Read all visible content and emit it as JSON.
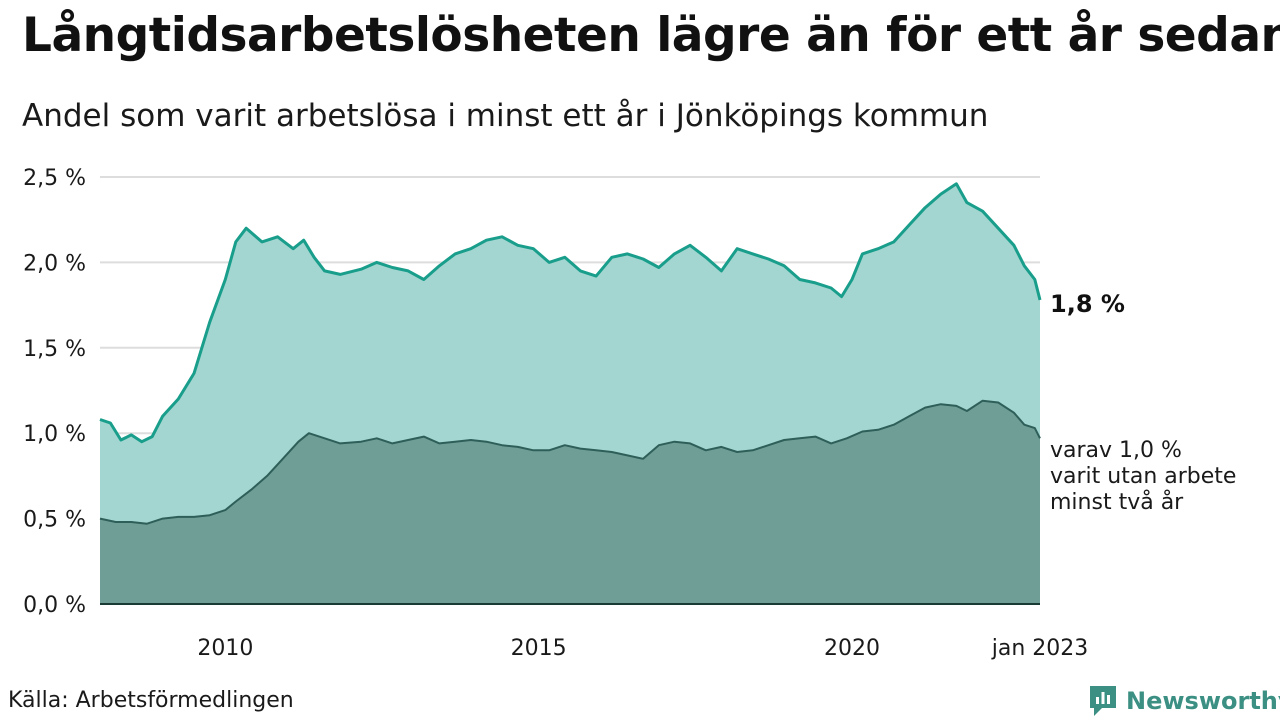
{
  "title": "Långtidsarbetslösheten lägre än för ett år sedan",
  "subtitle": "Andel som varit arbetslösa i minst ett år i Jönköpings kommun",
  "source": "Källa: Arbetsförmedlingen",
  "brand": "Newsworthy",
  "colors": {
    "upper_fill": "#a3d6d0",
    "upper_line": "#1a9e8c",
    "lower_fill": "#6f9e97",
    "lower_line": "#2f5f59",
    "grid": "#dddddd",
    "brand": "#3b8f83"
  },
  "chart_data": {
    "type": "area",
    "x_range": [
      "2008-01",
      "2023-01"
    ],
    "ylim": [
      0,
      2.5
    ],
    "y_ticks": [
      {
        "value": 0,
        "label": "0,0 %"
      },
      {
        "value": 0.5,
        "label": "0,5 %"
      },
      {
        "value": 1.0,
        "label": "1,0 %"
      },
      {
        "value": 1.5,
        "label": "1,5 %"
      },
      {
        "value": 2.0,
        "label": "2,0 %"
      },
      {
        "value": 2.5,
        "label": "2,5 %"
      }
    ],
    "x_ticks": [
      {
        "value": "2010-01",
        "label": "2010"
      },
      {
        "value": "2015-01",
        "label": "2015"
      },
      {
        "value": "2020-01",
        "label": "2020"
      },
      {
        "value": "2023-01",
        "label": "jan 2023"
      }
    ],
    "grid": true,
    "series": [
      {
        "key": "minst_ett_ar",
        "end_label": "1,8 %",
        "points": [
          [
            "2008-01",
            1.08
          ],
          [
            "2008-03",
            1.06
          ],
          [
            "2008-05",
            0.96
          ],
          [
            "2008-07",
            0.99
          ],
          [
            "2008-09",
            0.95
          ],
          [
            "2008-11",
            0.98
          ],
          [
            "2009-01",
            1.1
          ],
          [
            "2009-04",
            1.2
          ],
          [
            "2009-07",
            1.35
          ],
          [
            "2009-10",
            1.65
          ],
          [
            "2010-01",
            1.9
          ],
          [
            "2010-03",
            2.12
          ],
          [
            "2010-05",
            2.2
          ],
          [
            "2010-08",
            2.12
          ],
          [
            "2010-11",
            2.15
          ],
          [
            "2011-02",
            2.08
          ],
          [
            "2011-04",
            2.13
          ],
          [
            "2011-06",
            2.03
          ],
          [
            "2011-08",
            1.95
          ],
          [
            "2011-11",
            1.93
          ],
          [
            "2012-03",
            1.96
          ],
          [
            "2012-06",
            2.0
          ],
          [
            "2012-09",
            1.97
          ],
          [
            "2012-12",
            1.95
          ],
          [
            "2013-03",
            1.9
          ],
          [
            "2013-06",
            1.98
          ],
          [
            "2013-09",
            2.05
          ],
          [
            "2013-12",
            2.08
          ],
          [
            "2014-03",
            2.13
          ],
          [
            "2014-06",
            2.15
          ],
          [
            "2014-09",
            2.1
          ],
          [
            "2014-12",
            2.08
          ],
          [
            "2015-03",
            2.0
          ],
          [
            "2015-06",
            2.03
          ],
          [
            "2015-09",
            1.95
          ],
          [
            "2015-12",
            1.92
          ],
          [
            "2016-03",
            2.03
          ],
          [
            "2016-06",
            2.05
          ],
          [
            "2016-09",
            2.02
          ],
          [
            "2016-12",
            1.97
          ],
          [
            "2017-03",
            2.05
          ],
          [
            "2017-06",
            2.1
          ],
          [
            "2017-09",
            2.03
          ],
          [
            "2017-12",
            1.95
          ],
          [
            "2018-03",
            2.08
          ],
          [
            "2018-06",
            2.05
          ],
          [
            "2018-09",
            2.02
          ],
          [
            "2018-12",
            1.98
          ],
          [
            "2019-03",
            1.9
          ],
          [
            "2019-06",
            1.88
          ],
          [
            "2019-09",
            1.85
          ],
          [
            "2019-11",
            1.8
          ],
          [
            "2020-01",
            1.9
          ],
          [
            "2020-03",
            2.05
          ],
          [
            "2020-06",
            2.08
          ],
          [
            "2020-09",
            2.12
          ],
          [
            "2020-12",
            2.22
          ],
          [
            "2021-03",
            2.32
          ],
          [
            "2021-06",
            2.4
          ],
          [
            "2021-09",
            2.46
          ],
          [
            "2021-11",
            2.35
          ],
          [
            "2022-02",
            2.3
          ],
          [
            "2022-05",
            2.2
          ],
          [
            "2022-08",
            2.1
          ],
          [
            "2022-10",
            1.98
          ],
          [
            "2022-12",
            1.9
          ],
          [
            "2023-01",
            1.78
          ]
        ]
      },
      {
        "key": "minst_tva_ar",
        "end_label_lines": [
          "varav 1,0 %",
          "varit utan arbete",
          "minst två år"
        ],
        "points": [
          [
            "2008-01",
            0.5
          ],
          [
            "2008-04",
            0.48
          ],
          [
            "2008-07",
            0.48
          ],
          [
            "2008-10",
            0.47
          ],
          [
            "2009-01",
            0.5
          ],
          [
            "2009-04",
            0.51
          ],
          [
            "2009-07",
            0.51
          ],
          [
            "2009-10",
            0.52
          ],
          [
            "2010-01",
            0.55
          ],
          [
            "2010-03",
            0.6
          ],
          [
            "2010-06",
            0.67
          ],
          [
            "2010-09",
            0.75
          ],
          [
            "2010-12",
            0.85
          ],
          [
            "2011-03",
            0.95
          ],
          [
            "2011-05",
            1.0
          ],
          [
            "2011-08",
            0.97
          ],
          [
            "2011-11",
            0.94
          ],
          [
            "2012-03",
            0.95
          ],
          [
            "2012-06",
            0.97
          ],
          [
            "2012-09",
            0.94
          ],
          [
            "2012-12",
            0.96
          ],
          [
            "2013-03",
            0.98
          ],
          [
            "2013-06",
            0.94
          ],
          [
            "2013-09",
            0.95
          ],
          [
            "2013-12",
            0.96
          ],
          [
            "2014-03",
            0.95
          ],
          [
            "2014-06",
            0.93
          ],
          [
            "2014-09",
            0.92
          ],
          [
            "2014-12",
            0.9
          ],
          [
            "2015-03",
            0.9
          ],
          [
            "2015-06",
            0.93
          ],
          [
            "2015-09",
            0.91
          ],
          [
            "2015-12",
            0.9
          ],
          [
            "2016-03",
            0.89
          ],
          [
            "2016-06",
            0.87
          ],
          [
            "2016-09",
            0.85
          ],
          [
            "2016-12",
            0.93
          ],
          [
            "2017-03",
            0.95
          ],
          [
            "2017-06",
            0.94
          ],
          [
            "2017-09",
            0.9
          ],
          [
            "2017-12",
            0.92
          ],
          [
            "2018-03",
            0.89
          ],
          [
            "2018-06",
            0.9
          ],
          [
            "2018-09",
            0.93
          ],
          [
            "2018-12",
            0.96
          ],
          [
            "2019-03",
            0.97
          ],
          [
            "2019-06",
            0.98
          ],
          [
            "2019-09",
            0.94
          ],
          [
            "2019-12",
            0.97
          ],
          [
            "2020-03",
            1.01
          ],
          [
            "2020-06",
            1.02
          ],
          [
            "2020-09",
            1.05
          ],
          [
            "2020-12",
            1.1
          ],
          [
            "2021-03",
            1.15
          ],
          [
            "2021-06",
            1.17
          ],
          [
            "2021-09",
            1.16
          ],
          [
            "2021-11",
            1.13
          ],
          [
            "2022-02",
            1.19
          ],
          [
            "2022-05",
            1.18
          ],
          [
            "2022-08",
            1.12
          ],
          [
            "2022-10",
            1.05
          ],
          [
            "2022-12",
            1.03
          ],
          [
            "2023-01",
            0.97
          ]
        ]
      }
    ]
  }
}
